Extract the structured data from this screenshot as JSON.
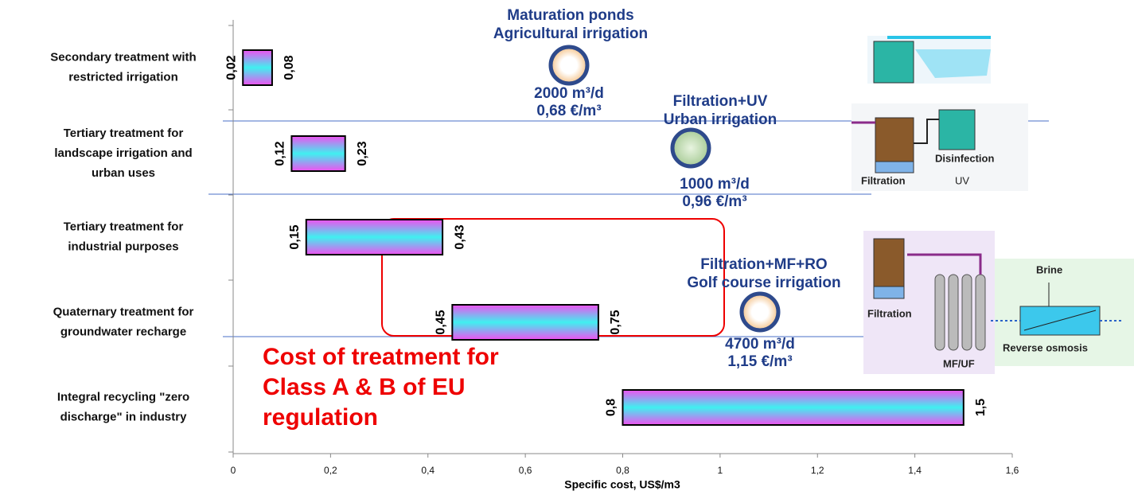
{
  "chart_data": {
    "type": "bar",
    "xlabel": "Specific cost, US$/m3",
    "categories": [
      [
        "Secondary treatment with",
        "restricted irrigation"
      ],
      [
        "Tertiary treatment for",
        "landscape irrigation and",
        "urban uses"
      ],
      [
        "Tertiary treatment for",
        "industrial purposes"
      ],
      [
        "Quaternary treatment for",
        "groundwater recharge"
      ],
      [
        "Integral recycling \"zero",
        "discharge\" in industry"
      ]
    ],
    "values": [
      [
        0.02,
        0.08
      ],
      [
        0.12,
        0.23
      ],
      [
        0.15,
        0.43
      ],
      [
        0.45,
        0.75
      ],
      [
        0.8,
        1.5
      ]
    ],
    "value_labels": [
      [
        "0,02",
        "0,08"
      ],
      [
        "0,12",
        "0,23"
      ],
      [
        "0,15",
        "0,43"
      ],
      [
        "0,45",
        "0,75"
      ],
      [
        "0,8",
        "1,5"
      ]
    ],
    "gradient": [
      "#f050f0",
      "#40f0f0"
    ],
    "xlim": [
      0,
      1.6
    ],
    "xticks": [
      0,
      {
        "value": 0.2,
        "label": "0,2"
      },
      {
        "value": 0.4,
        "label": "0,4"
      },
      {
        "value": 0.6,
        "label": "0,6"
      },
      {
        "value": 0.8,
        "label": "0,8"
      },
      1,
      {
        "value": 1.2,
        "label": "1,2"
      },
      {
        "value": 1.4,
        "label": "1,4"
      },
      {
        "value": 1.6,
        "label": "1,6"
      }
    ],
    "annotations": [
      {
        "lines": [
          "Maturation ponds",
          "Agricultural irrigation"
        ],
        "capacity": "2000 m³/d",
        "cost": "0,68 €/m³"
      },
      {
        "lines": [
          "Filtration+UV",
          "Urban irrigation"
        ],
        "capacity": "1000 m³/d",
        "cost": "0,96 €/m³"
      },
      {
        "lines": [
          "Filtration+MF+RO",
          "Golf course irrigation"
        ],
        "capacity": "4700 m³/d",
        "cost": "1,15 €/m³"
      }
    ],
    "highlight_text": [
      "Cost of treatment for",
      "Class A & B of EU",
      "regulation"
    ],
    "diagram_labels": [
      "Disinfection",
      "Filtration",
      "UV",
      "Filtration",
      "MF/UF",
      "Brine",
      "Reverse osmosis"
    ]
  }
}
